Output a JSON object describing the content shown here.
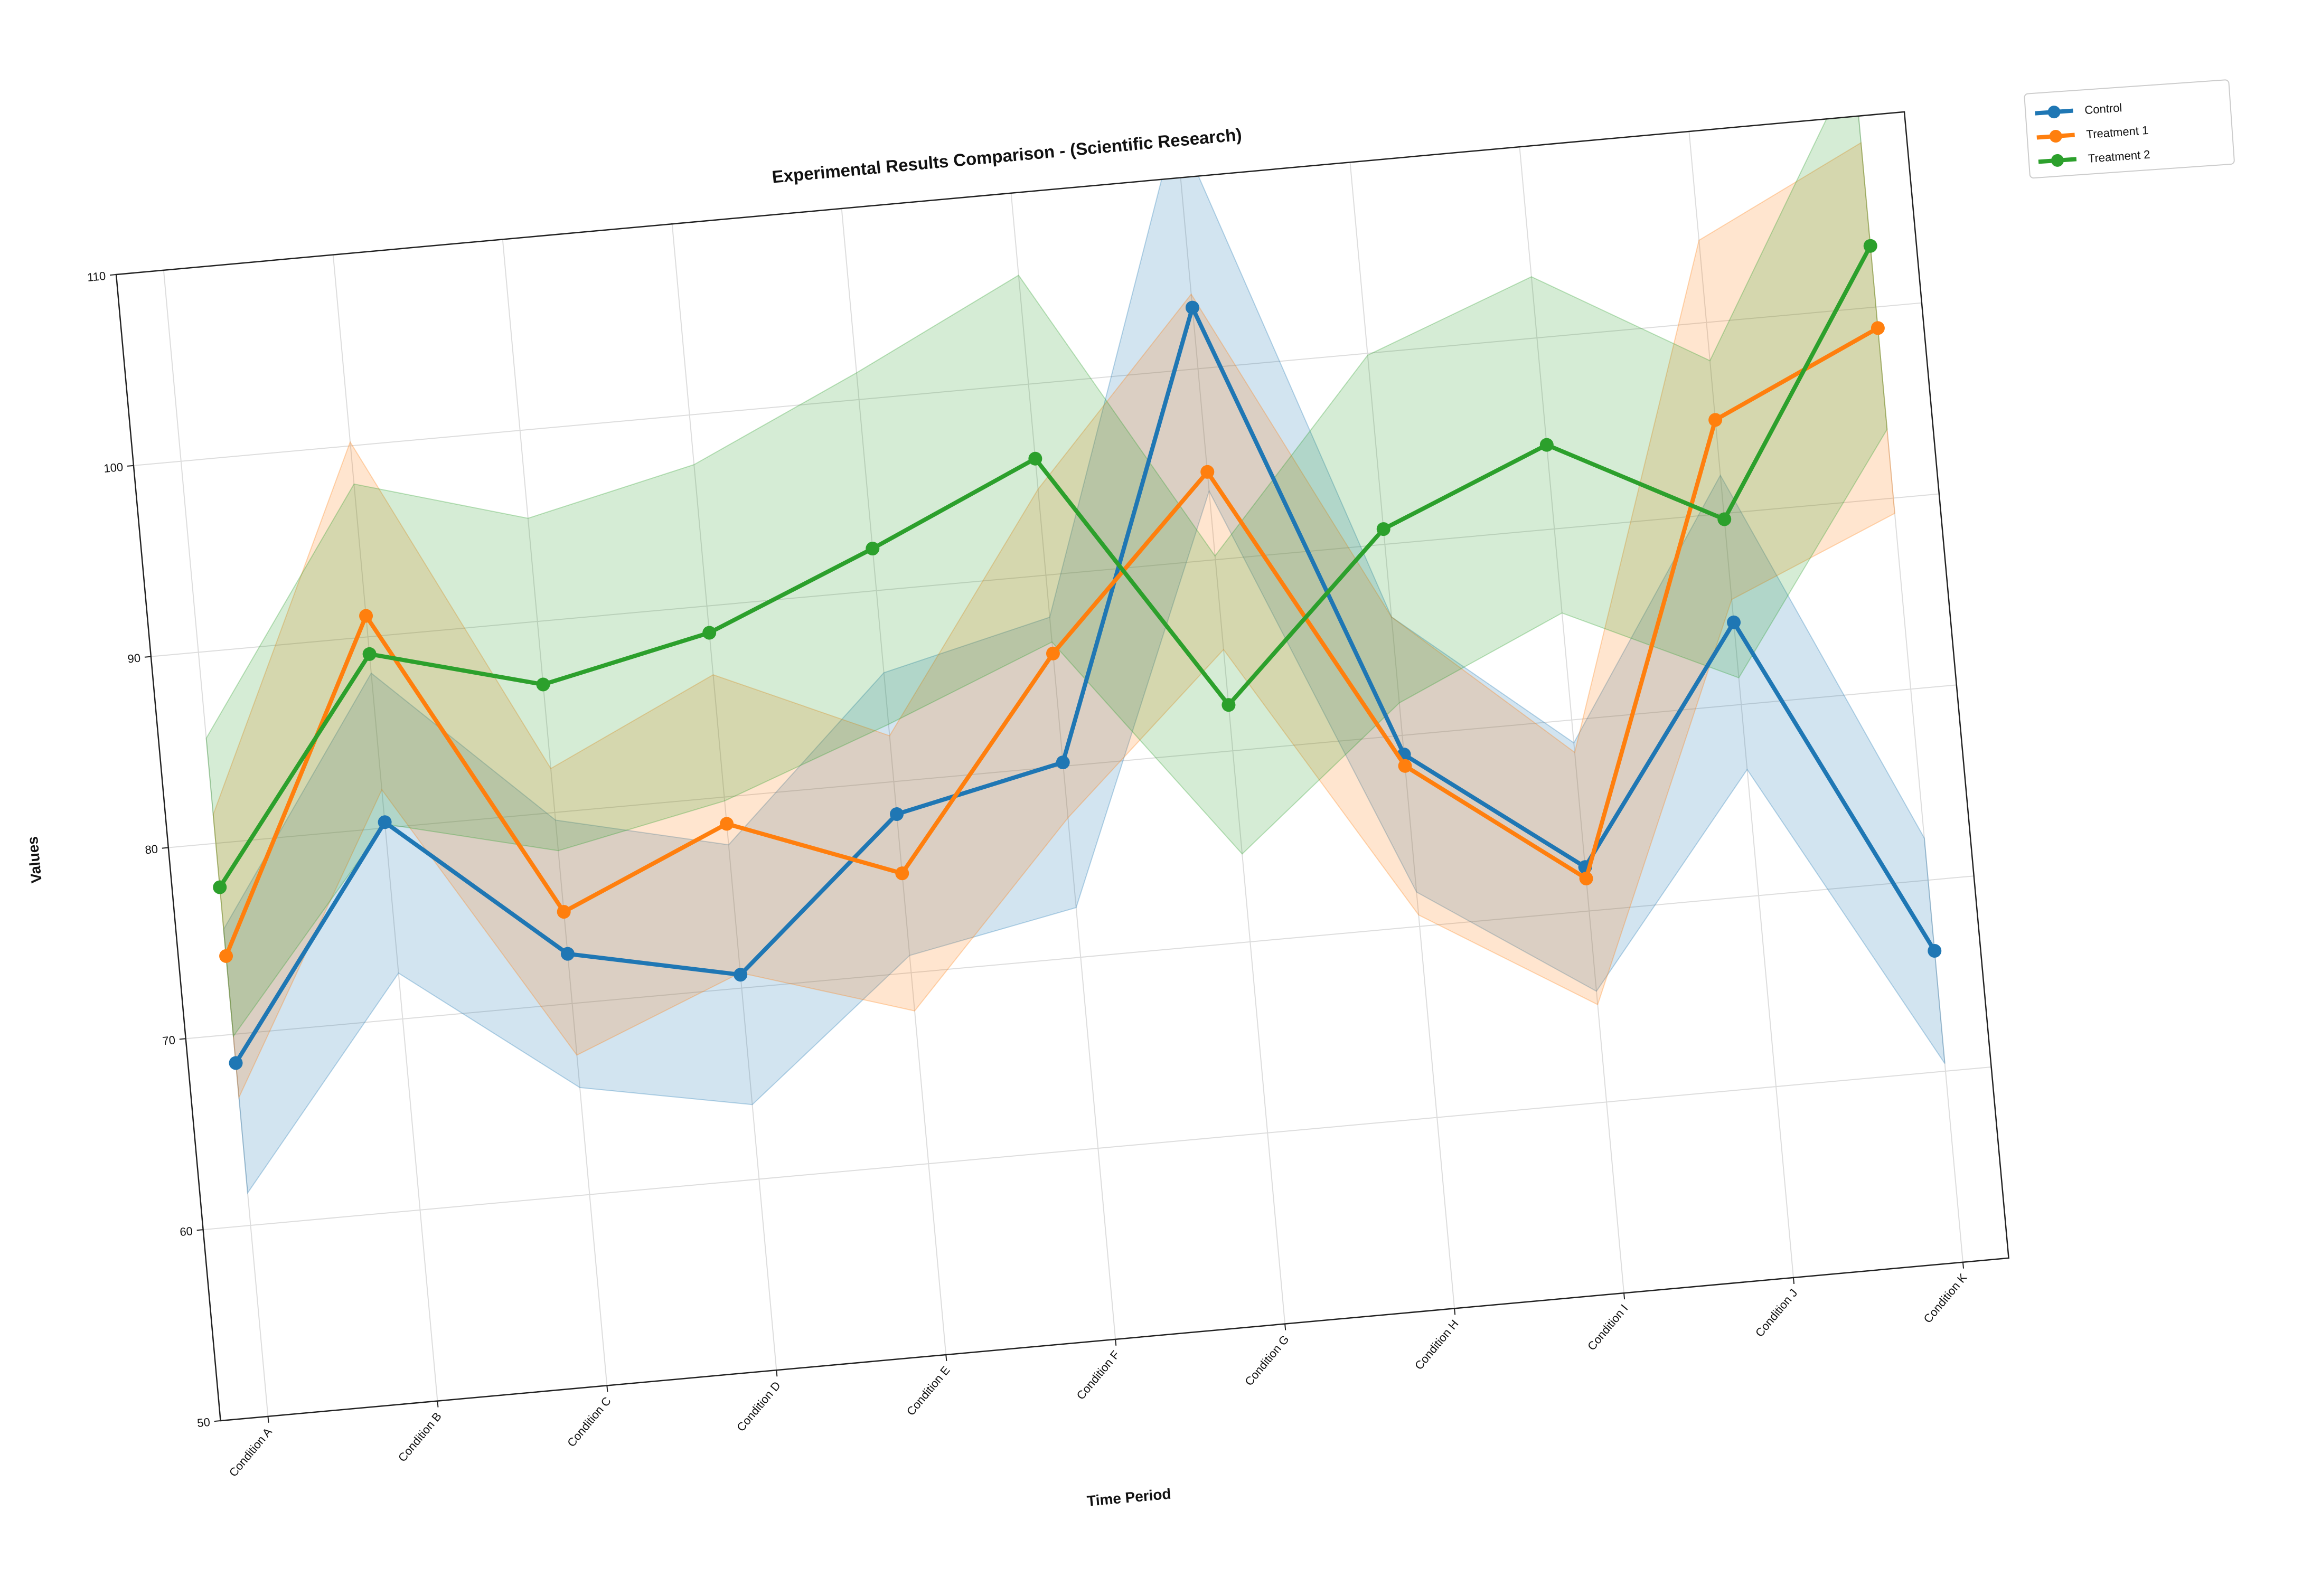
{
  "chart_data": {
    "type": "line",
    "title": "Experimental Results Comparison - (Scientific Research)",
    "xlabel": "Time Period",
    "ylabel": "Values",
    "categories": [
      "Condition A",
      "Condition B",
      "Condition C",
      "Condition D",
      "Condition E",
      "Condition F",
      "Condition G",
      "Condition H",
      "Condition I",
      "Condition J",
      "Condition K"
    ],
    "yticks": [
      "50",
      "60",
      "70",
      "80",
      "90",
      "100",
      "110"
    ],
    "ylim": [
      50,
      110
    ],
    "grid": true,
    "legend_position": "upper right, outside plot",
    "shaded_bands": true,
    "series": [
      {
        "name": "Control",
        "color": "#1f77b4",
        "values": [
          68.5,
          80.3,
          72.6,
          70.7,
          78.3,
          80.2,
          103.2,
          79.0,
          72.3,
          84.3,
          66.3
        ],
        "lower": [
          61.7,
          72.4,
          65.6,
          63.9,
          70.9,
          72.6,
          93.6,
          71.8,
          65.8,
          76.6,
          60.4
        ],
        "upper": [
          75.5,
          88.1,
          79.6,
          77.5,
          85.7,
          87.8,
          112.8,
          86.2,
          78.8,
          92.0,
          72.2
        ]
      },
      {
        "name": "Treatment 1",
        "color": "#ff7f0e",
        "values": [
          74.1,
          91.1,
          74.8,
          78.6,
          75.2,
          85.9,
          94.6,
          78.4,
          71.7,
          94.9,
          98.9
        ],
        "lower": [
          66.7,
          82.0,
          67.3,
          70.8,
          68.0,
          77.3,
          85.3,
          70.6,
          65.1,
          85.5,
          89.2
        ],
        "upper": [
          81.5,
          100.2,
          82.3,
          86.4,
          82.4,
          94.5,
          103.9,
          86.2,
          78.3,
          104.3,
          108.6
        ]
      },
      {
        "name": "Treatment 2",
        "color": "#2ca02c",
        "values": [
          77.7,
          89.1,
          86.7,
          88.6,
          92.2,
          96.1,
          82.4,
          90.8,
          94.4,
          89.7,
          103.2
        ],
        "lower": [
          69.9,
          80.2,
          78.0,
          79.8,
          83.0,
          86.5,
          74.6,
          81.7,
          85.6,
          81.4,
          93.6
        ],
        "upper": [
          85.5,
          98.0,
          95.4,
          97.4,
          101.4,
          105.7,
          90.2,
          99.9,
          103.2,
          98.0,
          112.8
        ]
      }
    ]
  }
}
